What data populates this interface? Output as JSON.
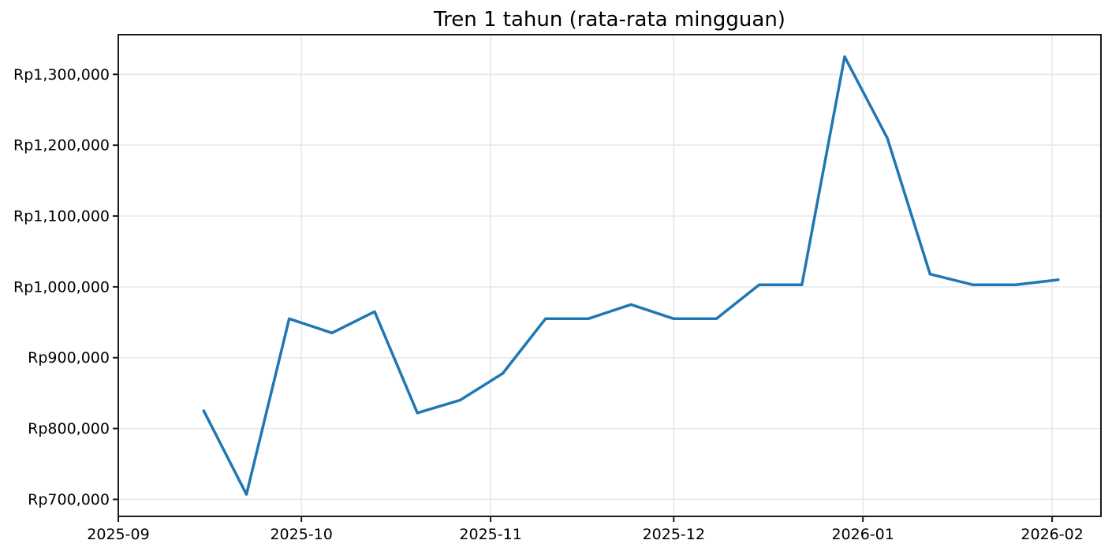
{
  "figure": {
    "background_color": "#ffffff"
  },
  "chart_data": {
    "type": "line",
    "title": "Tren 1 tahun (rata-rata mingguan)",
    "xlabel": "",
    "ylabel": "",
    "legend": "none",
    "grid": true,
    "line_color": "#1f77b4",
    "grid_color": "#e7e7e7",
    "axis_color": "#1a1a1a",
    "text_color": "#000000",
    "x": [
      "2025-09-15",
      "2025-09-22",
      "2025-09-29",
      "2025-10-06",
      "2025-10-13",
      "2025-10-20",
      "2025-10-27",
      "2025-11-03",
      "2025-11-10",
      "2025-11-17",
      "2025-11-24",
      "2025-12-01",
      "2025-12-08",
      "2025-12-15",
      "2025-12-22",
      "2025-12-29",
      "2026-01-05",
      "2026-01-12",
      "2026-01-19",
      "2026-01-26",
      "2026-02-02"
    ],
    "values": [
      825000,
      707000,
      955000,
      935000,
      965000,
      822000,
      840000,
      878000,
      955000,
      955000,
      975000,
      955000,
      955000,
      1003000,
      1003000,
      1325000,
      1210000,
      1018000,
      1003000,
      1003000,
      1010000
    ],
    "x_tick_dates": [
      "2025-09-01",
      "2025-10-01",
      "2025-11-01",
      "2025-12-01",
      "2026-01-01",
      "2026-02-01"
    ],
    "x_tick_labels": [
      "2025-09",
      "2025-10",
      "2025-11",
      "2025-12",
      "2026-01",
      "2026-02"
    ],
    "y_ticks": [
      700000,
      800000,
      900000,
      1000000,
      1100000,
      1200000,
      1300000
    ],
    "y_tick_labels": [
      "Rp700,000",
      "Rp800,000",
      "Rp900,000",
      "Rp1,000,000",
      "Rp1,100,000",
      "Rp1,200,000",
      "Rp1,300,000"
    ],
    "xlim": [
      "2025-09-01",
      "2026-02-09"
    ],
    "ylim": [
      676000,
      1356000
    ]
  }
}
